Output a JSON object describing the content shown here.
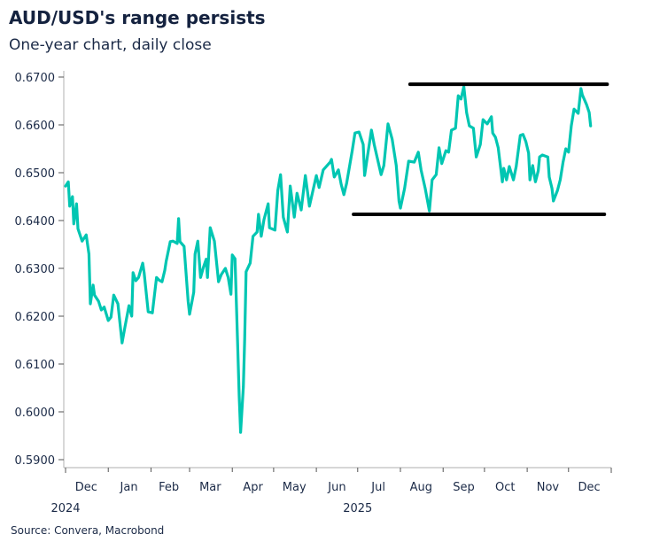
{
  "title": "AUD/USD's range persists",
  "subtitle": "One-year chart, daily close",
  "source": "Source: Convera, Macrobond",
  "colors": {
    "series": "#00c6b2",
    "range_lines": "#000000",
    "axis": "#bfbfbf",
    "text": "#1b2a47"
  },
  "chart_data": {
    "type": "line",
    "title": "AUD/USD's range persists",
    "subtitle": "One-year chart, daily close",
    "xlabel": "",
    "ylabel": "",
    "xlim": [
      "2024-12-01",
      "2026-01-01"
    ],
    "ylim": [
      0.59,
      0.67
    ],
    "yticks": [
      "0.5900",
      "0.6000",
      "0.6100",
      "0.6200",
      "0.6300",
      "0.6400",
      "0.6500",
      "0.6600",
      "0.6700"
    ],
    "xticks": [
      {
        "label": "Dec",
        "date": "2024-12-16"
      },
      {
        "label": "Jan",
        "date": "2025-01-16"
      },
      {
        "label": "Feb",
        "date": "2025-02-14"
      },
      {
        "label": "Mar",
        "date": "2025-03-16"
      },
      {
        "label": "Apr",
        "date": "2025-04-16"
      },
      {
        "label": "May",
        "date": "2025-05-16"
      },
      {
        "label": "Jun",
        "date": "2025-06-16"
      },
      {
        "label": "Jul",
        "date": "2025-07-16"
      },
      {
        "label": "Aug",
        "date": "2025-08-16"
      },
      {
        "label": "Sep",
        "date": "2025-09-16"
      },
      {
        "label": "Oct",
        "date": "2025-10-16"
      },
      {
        "label": "Nov",
        "date": "2025-11-16"
      },
      {
        "label": "Dec",
        "date": "2025-12-16"
      }
    ],
    "year_labels": [
      {
        "label": "2024",
        "date": "2024-12-01"
      },
      {
        "label": "2025",
        "date": "2025-07-01"
      }
    ],
    "grid": false,
    "legend": "none",
    "series": [
      {
        "x": [
          "2024-12-01",
          "2024-12-03",
          "2024-12-04",
          "2024-12-06",
          "2024-12-07",
          "2024-12-09",
          "2024-12-10",
          "2024-12-13",
          "2024-12-16",
          "2024-12-18",
          "2024-12-19",
          "2024-12-21",
          "2024-12-22",
          "2024-12-25",
          "2024-12-27",
          "2024-12-29",
          "2025-01-01",
          "2025-01-03",
          "2025-01-05",
          "2025-01-08",
          "2025-01-11",
          "2025-01-13",
          "2025-01-16",
          "2025-01-18",
          "2025-01-19",
          "2025-01-21",
          "2025-01-23",
          "2025-01-26",
          "2025-01-27",
          "2025-01-30",
          "2025-02-02",
          "2025-02-05",
          "2025-02-07",
          "2025-02-09",
          "2025-02-11",
          "2025-02-12",
          "2025-02-15",
          "2025-02-17",
          "2025-02-20",
          "2025-02-21",
          "2025-02-22",
          "2025-02-25",
          "2025-02-28",
          "2025-03-01",
          "2025-03-04",
          "2025-03-05",
          "2025-03-07",
          "2025-03-09",
          "2025-03-11",
          "2025-03-13",
          "2025-03-14",
          "2025-03-16",
          "2025-03-19",
          "2025-03-22",
          "2025-03-24",
          "2025-03-27",
          "2025-03-29",
          "2025-03-31",
          "2025-04-01",
          "2025-04-03",
          "2025-04-05",
          "2025-04-06",
          "2025-04-07",
          "2025-04-09",
          "2025-04-10",
          "2025-04-11",
          "2025-04-14",
          "2025-04-16",
          "2025-04-19",
          "2025-04-20",
          "2025-04-22",
          "2025-04-24",
          "2025-04-27",
          "2025-04-28",
          "2025-05-02",
          "2025-05-04",
          "2025-05-06",
          "2025-05-08",
          "2025-05-11",
          "2025-05-13",
          "2025-05-16",
          "2025-05-18",
          "2025-05-21",
          "2025-05-24",
          "2025-05-27",
          "2025-06-01",
          "2025-06-03",
          "2025-06-06",
          "2025-06-11",
          "2025-06-12",
          "2025-06-14",
          "2025-06-17",
          "2025-06-19",
          "2025-06-21",
          "2025-06-23",
          "2025-06-27",
          "2025-06-29",
          "2025-07-02",
          "2025-07-05",
          "2025-07-06",
          "2025-07-08",
          "2025-07-11",
          "2025-07-13",
          "2025-07-18",
          "2025-07-20",
          "2025-07-23",
          "2025-07-26",
          "2025-07-29",
          "2025-07-31",
          "2025-08-01",
          "2025-08-04",
          "2025-08-07",
          "2025-08-11",
          "2025-08-14",
          "2025-08-16",
          "2025-08-19",
          "2025-08-22",
          "2025-08-24",
          "2025-08-27",
          "2025-08-29",
          "2025-08-31",
          "2025-09-03",
          "2025-09-05",
          "2025-09-07",
          "2025-09-10",
          "2025-09-12",
          "2025-09-14",
          "2025-09-16",
          "2025-09-18",
          "2025-09-20",
          "2025-09-23",
          "2025-09-25",
          "2025-09-28",
          "2025-09-30",
          "2025-10-03",
          "2025-10-06",
          "2025-10-07",
          "2025-10-09",
          "2025-10-11",
          "2025-10-14",
          "2025-10-15",
          "2025-10-17",
          "2025-10-19",
          "2025-10-22",
          "2025-10-24",
          "2025-10-27",
          "2025-10-29",
          "2025-10-31",
          "2025-11-02",
          "2025-11-03",
          "2025-11-05",
          "2025-11-07",
          "2025-11-09",
          "2025-11-10",
          "2025-11-12",
          "2025-11-16",
          "2025-11-17",
          "2025-11-19",
          "2025-11-20",
          "2025-11-23",
          "2025-11-25",
          "2025-11-27",
          "2025-11-29",
          "2025-12-01",
          "2025-12-03",
          "2025-12-05",
          "2025-12-08",
          "2025-12-10",
          "2025-12-11",
          "2025-12-14",
          "2025-12-16",
          "2025-12-17"
        ],
        "y": [
          0.6472,
          0.6481,
          0.643,
          0.645,
          0.6393,
          0.6435,
          0.6383,
          0.6357,
          0.637,
          0.633,
          0.6226,
          0.6265,
          0.6244,
          0.6231,
          0.6213,
          0.6219,
          0.6191,
          0.6198,
          0.6244,
          0.6226,
          0.6144,
          0.6176,
          0.6222,
          0.62,
          0.6291,
          0.6274,
          0.6281,
          0.6311,
          0.6291,
          0.6209,
          0.6207,
          0.6281,
          0.6275,
          0.6272,
          0.6296,
          0.6315,
          0.6356,
          0.6357,
          0.6352,
          0.6404,
          0.6356,
          0.6346,
          0.6231,
          0.6204,
          0.625,
          0.633,
          0.6357,
          0.6281,
          0.6302,
          0.6319,
          0.6281,
          0.6385,
          0.6357,
          0.6272,
          0.6287,
          0.63,
          0.6281,
          0.6246,
          0.6328,
          0.632,
          0.6133,
          0.6033,
          0.5957,
          0.6052,
          0.6152,
          0.6293,
          0.6311,
          0.6367,
          0.6376,
          0.6413,
          0.6367,
          0.6402,
          0.6435,
          0.6385,
          0.638,
          0.6463,
          0.6496,
          0.6407,
          0.6376,
          0.6472,
          0.6407,
          0.6457,
          0.6422,
          0.6494,
          0.643,
          0.6494,
          0.6469,
          0.6506,
          0.6522,
          0.6528,
          0.6491,
          0.6506,
          0.6476,
          0.6454,
          0.6478,
          0.6546,
          0.6583,
          0.6585,
          0.6559,
          0.6494,
          0.6533,
          0.6589,
          0.6559,
          0.6496,
          0.6515,
          0.6602,
          0.657,
          0.6515,
          0.6441,
          0.6426,
          0.6467,
          0.6524,
          0.6522,
          0.6543,
          0.6506,
          0.6467,
          0.642,
          0.6485,
          0.6496,
          0.6552,
          0.6519,
          0.6546,
          0.6543,
          0.6589,
          0.6593,
          0.6661,
          0.6654,
          0.668,
          0.6626,
          0.6598,
          0.6593,
          0.6533,
          0.6559,
          0.6611,
          0.6602,
          0.6617,
          0.6583,
          0.6574,
          0.6552,
          0.6481,
          0.6509,
          0.6485,
          0.6513,
          0.6485,
          0.6513,
          0.6578,
          0.658,
          0.6565,
          0.6541,
          0.6485,
          0.6515,
          0.6481,
          0.6504,
          0.6533,
          0.6537,
          0.6533,
          0.6491,
          0.6467,
          0.6441,
          0.6463,
          0.6485,
          0.6522,
          0.655,
          0.6543,
          0.6598,
          0.6633,
          0.6624,
          0.6676,
          0.6663,
          0.6643,
          0.6626,
          0.6598
        ]
      }
    ],
    "annotations": [
      {
        "type": "hline",
        "value": 0.6685,
        "from": "2025-08-08",
        "to": "2025-12-29"
      },
      {
        "type": "hline",
        "value": 0.6413,
        "from": "2025-06-28",
        "to": "2025-12-27"
      }
    ]
  }
}
